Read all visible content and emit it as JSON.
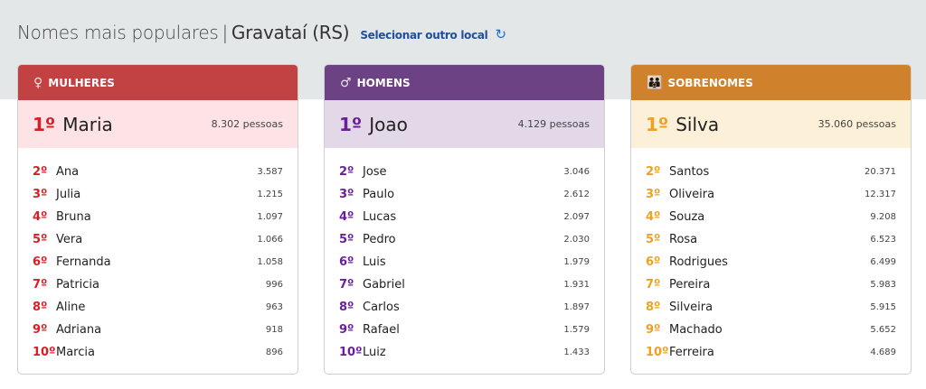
{
  "header": {
    "title": "Nomes mais populares",
    "separator": "|",
    "place": "Gravataí (RS)",
    "select_label": "Selecionar outro local",
    "refresh_icon": "↻"
  },
  "cards": [
    {
      "title": "MULHERES",
      "icon": "♀",
      "color": "#c24142",
      "light": "#fde3e6",
      "rank_color": "#d71f26",
      "first": {
        "rank": "1º",
        "name": "Maria",
        "count": "8.302 pessoas"
      },
      "items": [
        [
          "2º",
          "Ana",
          "3.587"
        ],
        [
          "3º",
          "Julia",
          "1.215"
        ],
        [
          "4º",
          "Bruna",
          "1.097"
        ],
        [
          "5º",
          "Vera",
          "1.066"
        ],
        [
          "6º",
          "Fernanda",
          "1.058"
        ],
        [
          "7º",
          "Patricia",
          "996"
        ],
        [
          "8º",
          "Aline",
          "963"
        ],
        [
          "9º",
          "Adriana",
          "918"
        ],
        [
          "10º",
          "Marcia",
          "896"
        ]
      ]
    },
    {
      "title": "HOMENS",
      "icon": "♂",
      "color": "#6c4284",
      "light": "#e3d8e7",
      "rank_color": "#6a1f9a",
      "first": {
        "rank": "1º",
        "name": "Joao",
        "count": "4.129 pessoas"
      },
      "items": [
        [
          "2º",
          "Jose",
          "3.046"
        ],
        [
          "3º",
          "Paulo",
          "2.612"
        ],
        [
          "4º",
          "Lucas",
          "2.097"
        ],
        [
          "5º",
          "Pedro",
          "2.030"
        ],
        [
          "6º",
          "Luis",
          "1.979"
        ],
        [
          "7º",
          "Gabriel",
          "1.931"
        ],
        [
          "8º",
          "Carlos",
          "1.897"
        ],
        [
          "9º",
          "Rafael",
          "1.579"
        ],
        [
          "10º",
          "Luiz",
          "1.433"
        ]
      ]
    },
    {
      "title": "SOBRENOMES",
      "icon": "👪",
      "color": "#d0812b",
      "light": "#fdf0d9",
      "rank_color": "#f0a020",
      "first": {
        "rank": "1º",
        "name": "Silva",
        "count": "35.060 pessoas"
      },
      "items": [
        [
          "2º",
          "Santos",
          "20.371"
        ],
        [
          "3º",
          "Oliveira",
          "12.317"
        ],
        [
          "4º",
          "Souza",
          "9.208"
        ],
        [
          "5º",
          "Rosa",
          "6.523"
        ],
        [
          "6º",
          "Rodrigues",
          "6.499"
        ],
        [
          "7º",
          "Pereira",
          "5.983"
        ],
        [
          "8º",
          "Silveira",
          "5.915"
        ],
        [
          "9º",
          "Machado",
          "5.652"
        ],
        [
          "10º",
          "Ferreira",
          "4.689"
        ]
      ]
    }
  ]
}
